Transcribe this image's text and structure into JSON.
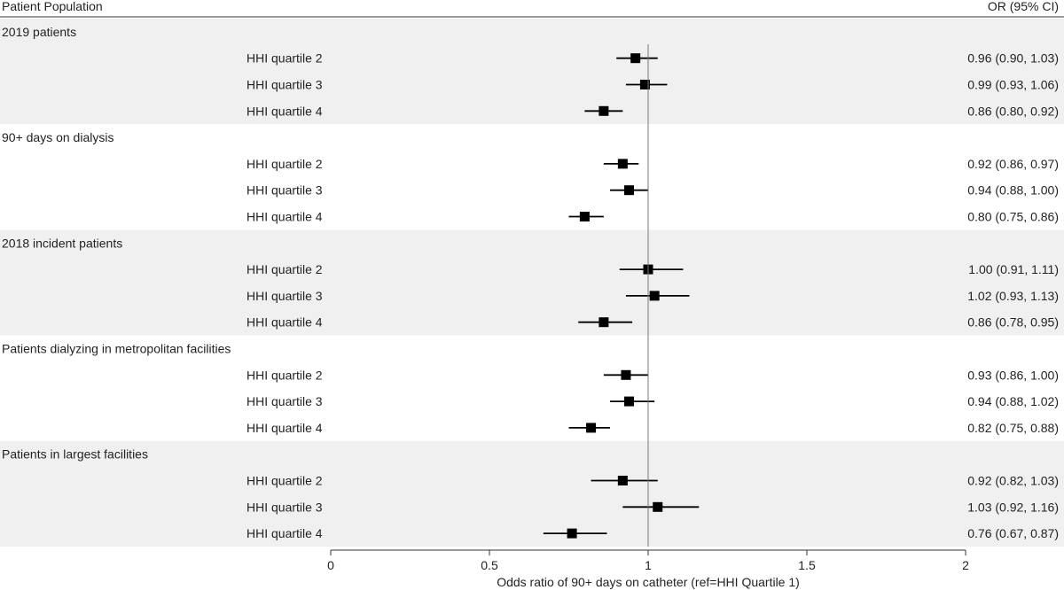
{
  "chart_data": {
    "type": "forest",
    "header_left": "Patient Population",
    "header_right": "OR (95% CI)",
    "xlabel": "Odds ratio of 90+ days on catheter (ref=HHI Quartile 1)",
    "xlim": [
      0,
      2
    ],
    "xticks": [
      "0",
      "0.5",
      "1",
      "1.5",
      "2"
    ],
    "reference_line": 1,
    "groups": [
      {
        "name": "2019 patients",
        "rows": [
          {
            "label": "HHI quartile 2",
            "or": 0.96,
            "lo": 0.9,
            "hi": 1.03,
            "text": "0.96 (0.90, 1.03)"
          },
          {
            "label": "HHI quartile 3",
            "or": 0.99,
            "lo": 0.93,
            "hi": 1.06,
            "text": "0.99 (0.93, 1.06)"
          },
          {
            "label": "HHI quartile 4",
            "or": 0.86,
            "lo": 0.8,
            "hi": 0.92,
            "text": "0.86 (0.80, 0.92)"
          }
        ]
      },
      {
        "name": "90+ days on dialysis",
        "rows": [
          {
            "label": "HHI quartile 2",
            "or": 0.92,
            "lo": 0.86,
            "hi": 0.97,
            "text": "0.92 (0.86, 0.97)"
          },
          {
            "label": "HHI quartile 3",
            "or": 0.94,
            "lo": 0.88,
            "hi": 1.0,
            "text": "0.94 (0.88, 1.00)"
          },
          {
            "label": "HHI quartile 4",
            "or": 0.8,
            "lo": 0.75,
            "hi": 0.86,
            "text": "0.80 (0.75, 0.86)"
          }
        ]
      },
      {
        "name": "2018 incident patients",
        "rows": [
          {
            "label": "HHI quartile 2",
            "or": 1.0,
            "lo": 0.91,
            "hi": 1.11,
            "text": "1.00 (0.91, 1.11)"
          },
          {
            "label": "HHI quartile 3",
            "or": 1.02,
            "lo": 0.93,
            "hi": 1.13,
            "text": "1.02 (0.93, 1.13)"
          },
          {
            "label": "HHI quartile 4",
            "or": 0.86,
            "lo": 0.78,
            "hi": 0.95,
            "text": "0.86 (0.78, 0.95)"
          }
        ]
      },
      {
        "name": "Patients dialyzing in metropolitan facilities",
        "rows": [
          {
            "label": "HHI quartile 2",
            "or": 0.93,
            "lo": 0.86,
            "hi": 1.0,
            "text": "0.93 (0.86, 1.00)"
          },
          {
            "label": "HHI quartile 3",
            "or": 0.94,
            "lo": 0.88,
            "hi": 1.02,
            "text": "0.94 (0.88, 1.02)"
          },
          {
            "label": "HHI quartile 4",
            "or": 0.82,
            "lo": 0.75,
            "hi": 0.88,
            "text": "0.82 (0.75, 0.88)"
          }
        ]
      },
      {
        "name": "Patients in largest facilities",
        "rows": [
          {
            "label": "HHI quartile 2",
            "or": 0.92,
            "lo": 0.82,
            "hi": 1.03,
            "text": "0.92 (0.82, 1.03)"
          },
          {
            "label": "HHI quartile 3",
            "or": 1.03,
            "lo": 0.92,
            "hi": 1.16,
            "text": "1.03 (0.92, 1.16)"
          },
          {
            "label": "HHI quartile 4",
            "or": 0.76,
            "lo": 0.67,
            "hi": 0.87,
            "text": "0.76 (0.67, 0.87)"
          }
        ]
      }
    ]
  }
}
